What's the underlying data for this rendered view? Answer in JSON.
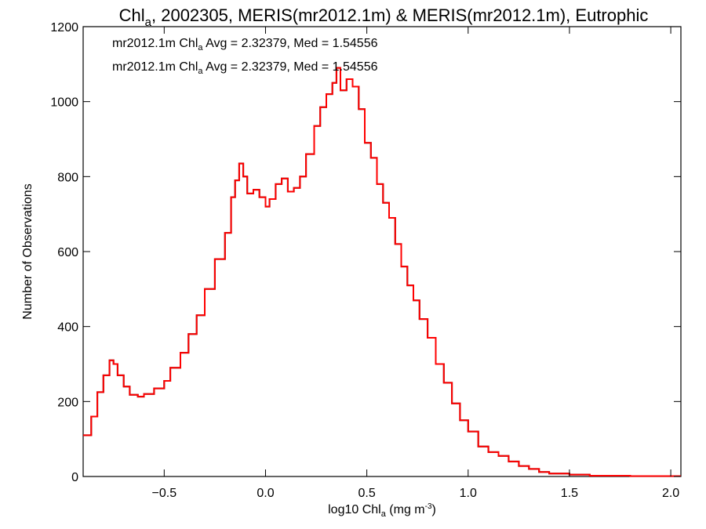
{
  "chart_data": {
    "type": "histogram",
    "title_parts": {
      "pre": "Chl",
      "sub": "a",
      "post": ", 2002305, MERIS(mr2012.1m) & MERIS(mr2012.1m), Eutrophic"
    },
    "xlabel_parts": {
      "pre": "log10 Chl",
      "sub": "a",
      "mid": " (mg m",
      "sup": "-3",
      "post": ")"
    },
    "ylabel": "Number of Observations",
    "xlim": [
      -0.9,
      2.05
    ],
    "ylim": [
      0,
      1200
    ],
    "xticks": [
      -0.5,
      0.0,
      0.5,
      1.0,
      1.5,
      2.0
    ],
    "xtick_labels": [
      "−0.5",
      "0.0",
      "0.5",
      "1.0",
      "1.5",
      "2.0"
    ],
    "yticks": [
      0,
      200,
      400,
      600,
      800,
      1000,
      1200
    ],
    "ytick_labels": [
      "0",
      "200",
      "400",
      "600",
      "800",
      "1000",
      "1200"
    ],
    "annotations": [
      {
        "pre": "mr2012.1m Chl",
        "sub": "a",
        "post": " Avg = 2.32379, Med = 1.54556",
        "color": "#000000"
      },
      {
        "pre": "mr2012.1m Chl",
        "sub": "a",
        "post": " Avg = 2.32379, Med = 1.54556",
        "color": "#ff0000"
      }
    ],
    "series": [
      {
        "color": "#000000",
        "points": [
          [
            -0.9,
            110
          ],
          [
            -0.86,
            160
          ],
          [
            -0.83,
            225
          ],
          [
            -0.8,
            270
          ],
          [
            -0.77,
            310
          ],
          [
            -0.75,
            300
          ],
          [
            -0.73,
            270
          ],
          [
            -0.7,
            240
          ],
          [
            -0.67,
            218
          ],
          [
            -0.63,
            213
          ],
          [
            -0.6,
            220
          ],
          [
            -0.55,
            235
          ],
          [
            -0.5,
            255
          ],
          [
            -0.47,
            290
          ],
          [
            -0.42,
            330
          ],
          [
            -0.38,
            380
          ],
          [
            -0.34,
            430
          ],
          [
            -0.3,
            500
          ],
          [
            -0.25,
            580
          ],
          [
            -0.2,
            650
          ],
          [
            -0.17,
            745
          ],
          [
            -0.15,
            790
          ],
          [
            -0.13,
            835
          ],
          [
            -0.11,
            800
          ],
          [
            -0.09,
            755
          ],
          [
            -0.06,
            765
          ],
          [
            -0.03,
            745
          ],
          [
            0.0,
            720
          ],
          [
            0.02,
            740
          ],
          [
            0.05,
            780
          ],
          [
            0.08,
            795
          ],
          [
            0.11,
            760
          ],
          [
            0.14,
            770
          ],
          [
            0.17,
            800
          ],
          [
            0.2,
            860
          ],
          [
            0.24,
            935
          ],
          [
            0.27,
            985
          ],
          [
            0.3,
            1020
          ],
          [
            0.33,
            1050
          ],
          [
            0.35,
            1090
          ],
          [
            0.37,
            1030
          ],
          [
            0.4,
            1060
          ],
          [
            0.43,
            1040
          ],
          [
            0.46,
            980
          ],
          [
            0.49,
            890
          ],
          [
            0.52,
            850
          ],
          [
            0.55,
            780
          ],
          [
            0.58,
            730
          ],
          [
            0.61,
            690
          ],
          [
            0.64,
            620
          ],
          [
            0.67,
            560
          ],
          [
            0.7,
            510
          ],
          [
            0.73,
            470
          ],
          [
            0.76,
            420
          ],
          [
            0.8,
            370
          ],
          [
            0.84,
            300
          ],
          [
            0.88,
            250
          ],
          [
            0.92,
            195
          ],
          [
            0.96,
            150
          ],
          [
            1.0,
            120
          ],
          [
            1.05,
            80
          ],
          [
            1.1,
            65
          ],
          [
            1.15,
            55
          ],
          [
            1.2,
            40
          ],
          [
            1.25,
            28
          ],
          [
            1.3,
            20
          ],
          [
            1.35,
            12
          ],
          [
            1.4,
            8
          ],
          [
            1.5,
            5
          ],
          [
            1.6,
            2
          ],
          [
            1.8,
            1
          ],
          [
            2.05,
            1
          ]
        ]
      },
      {
        "color": "#ff0000",
        "points": [
          [
            -0.9,
            110
          ],
          [
            -0.86,
            160
          ],
          [
            -0.83,
            225
          ],
          [
            -0.8,
            270
          ],
          [
            -0.77,
            310
          ],
          [
            -0.75,
            300
          ],
          [
            -0.73,
            270
          ],
          [
            -0.7,
            240
          ],
          [
            -0.67,
            218
          ],
          [
            -0.63,
            213
          ],
          [
            -0.6,
            220
          ],
          [
            -0.55,
            235
          ],
          [
            -0.5,
            255
          ],
          [
            -0.47,
            290
          ],
          [
            -0.42,
            330
          ],
          [
            -0.38,
            380
          ],
          [
            -0.34,
            430
          ],
          [
            -0.3,
            500
          ],
          [
            -0.25,
            580
          ],
          [
            -0.2,
            650
          ],
          [
            -0.17,
            745
          ],
          [
            -0.15,
            790
          ],
          [
            -0.13,
            835
          ],
          [
            -0.11,
            800
          ],
          [
            -0.09,
            755
          ],
          [
            -0.06,
            765
          ],
          [
            -0.03,
            745
          ],
          [
            0.0,
            720
          ],
          [
            0.02,
            740
          ],
          [
            0.05,
            780
          ],
          [
            0.08,
            795
          ],
          [
            0.11,
            760
          ],
          [
            0.14,
            770
          ],
          [
            0.17,
            800
          ],
          [
            0.2,
            860
          ],
          [
            0.24,
            935
          ],
          [
            0.27,
            985
          ],
          [
            0.3,
            1020
          ],
          [
            0.33,
            1050
          ],
          [
            0.35,
            1090
          ],
          [
            0.37,
            1030
          ],
          [
            0.4,
            1060
          ],
          [
            0.43,
            1040
          ],
          [
            0.46,
            980
          ],
          [
            0.49,
            890
          ],
          [
            0.52,
            850
          ],
          [
            0.55,
            780
          ],
          [
            0.58,
            730
          ],
          [
            0.61,
            690
          ],
          [
            0.64,
            620
          ],
          [
            0.67,
            560
          ],
          [
            0.7,
            510
          ],
          [
            0.73,
            470
          ],
          [
            0.76,
            420
          ],
          [
            0.8,
            370
          ],
          [
            0.84,
            300
          ],
          [
            0.88,
            250
          ],
          [
            0.92,
            195
          ],
          [
            0.96,
            150
          ],
          [
            1.0,
            120
          ],
          [
            1.05,
            80
          ],
          [
            1.1,
            65
          ],
          [
            1.15,
            55
          ],
          [
            1.2,
            40
          ],
          [
            1.25,
            28
          ],
          [
            1.3,
            20
          ],
          [
            1.35,
            12
          ],
          [
            1.4,
            8
          ],
          [
            1.5,
            5
          ],
          [
            1.6,
            2
          ],
          [
            1.8,
            1
          ],
          [
            2.05,
            1
          ]
        ]
      }
    ]
  }
}
